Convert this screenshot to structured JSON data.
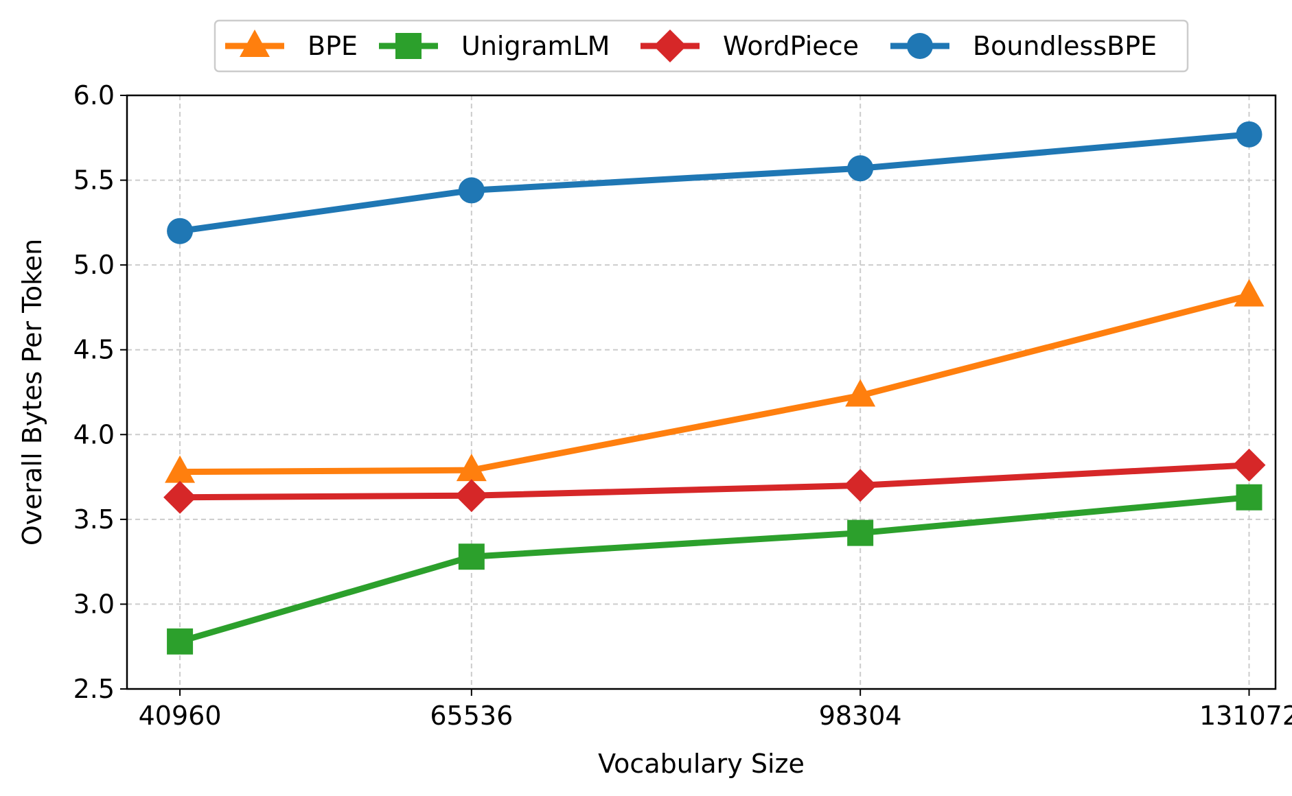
{
  "chart_data": {
    "type": "line",
    "title": "",
    "xlabel": "Vocabulary Size",
    "ylabel": "Overall Bytes Per Token",
    "x": [
      40960,
      65536,
      98304,
      131072
    ],
    "x_tick_labels": [
      "40960",
      "65536",
      "98304",
      "131072"
    ],
    "y_ticks": [
      2.5,
      3.0,
      3.5,
      4.0,
      4.5,
      5.0,
      5.5,
      6.0
    ],
    "y_tick_labels": [
      "2.5",
      "3.0",
      "3.5",
      "4.0",
      "4.5",
      "5.0",
      "5.5",
      "6.0"
    ],
    "xlim": [
      36500,
      133300
    ],
    "ylim": [
      2.5,
      6.0
    ],
    "grid": true,
    "legend_position": "top-center",
    "series": [
      {
        "name": "BPE",
        "color": "#ff7f0e",
        "marker": "triangle",
        "values": [
          3.78,
          3.79,
          4.23,
          4.82
        ]
      },
      {
        "name": "UnigramLM",
        "color": "#2ca02c",
        "marker": "square",
        "values": [
          2.78,
          3.28,
          3.42,
          3.63
        ]
      },
      {
        "name": "WordPiece",
        "color": "#d62728",
        "marker": "diamond",
        "values": [
          3.63,
          3.64,
          3.7,
          3.82
        ]
      },
      {
        "name": "BoundlessBPE",
        "color": "#1f77b4",
        "marker": "circle",
        "values": [
          5.2,
          5.44,
          5.57,
          5.77
        ]
      }
    ]
  }
}
